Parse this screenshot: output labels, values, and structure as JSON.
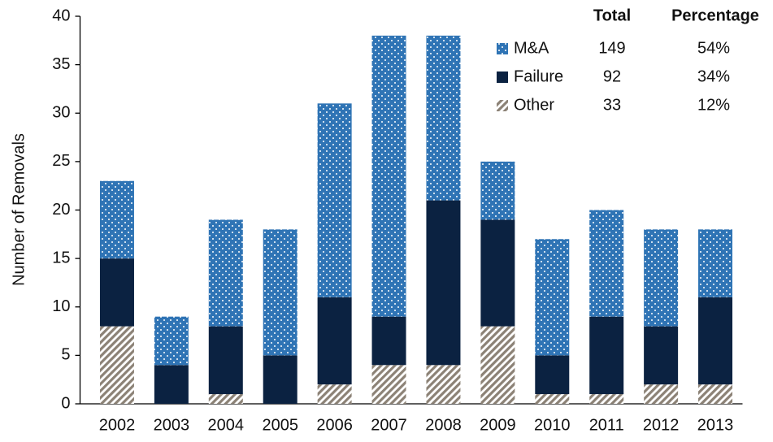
{
  "chart_data": {
    "type": "stacked_bar",
    "y_label": "Number of Removals",
    "categories": [
      "2002",
      "2003",
      "2004",
      "2005",
      "2006",
      "2007",
      "2008",
      "2009",
      "2010",
      "2011",
      "2012",
      "2013"
    ],
    "series": [
      {
        "name": "Other",
        "color": "#8c8276",
        "pattern": "stripes",
        "values": [
          8,
          0,
          1,
          0,
          2,
          4,
          4,
          8,
          1,
          1,
          2,
          2
        ],
        "total": 33,
        "share": {
          "value": 12,
          "label": "12%"
        }
      },
      {
        "name": "Failure",
        "color": "#0b2241",
        "pattern": "solid",
        "values": [
          7,
          4,
          7,
          5,
          9,
          5,
          17,
          11,
          4,
          8,
          6,
          9
        ],
        "total": 92,
        "share": {
          "value": 34,
          "label": "34%"
        }
      },
      {
        "name": "M&A",
        "color": "#2f74b5",
        "pattern": "dots",
        "values": [
          8,
          5,
          11,
          13,
          20,
          29,
          17,
          6,
          12,
          11,
          10,
          7
        ],
        "total": 149,
        "share": {
          "value": 54,
          "label": "54%"
        }
      }
    ],
    "legend_columns": [
      "Total",
      "Percentage"
    ],
    "ylim": [
      0,
      40
    ],
    "yticks": [
      0,
      5,
      10,
      15,
      20,
      25,
      30,
      35,
      40
    ]
  }
}
